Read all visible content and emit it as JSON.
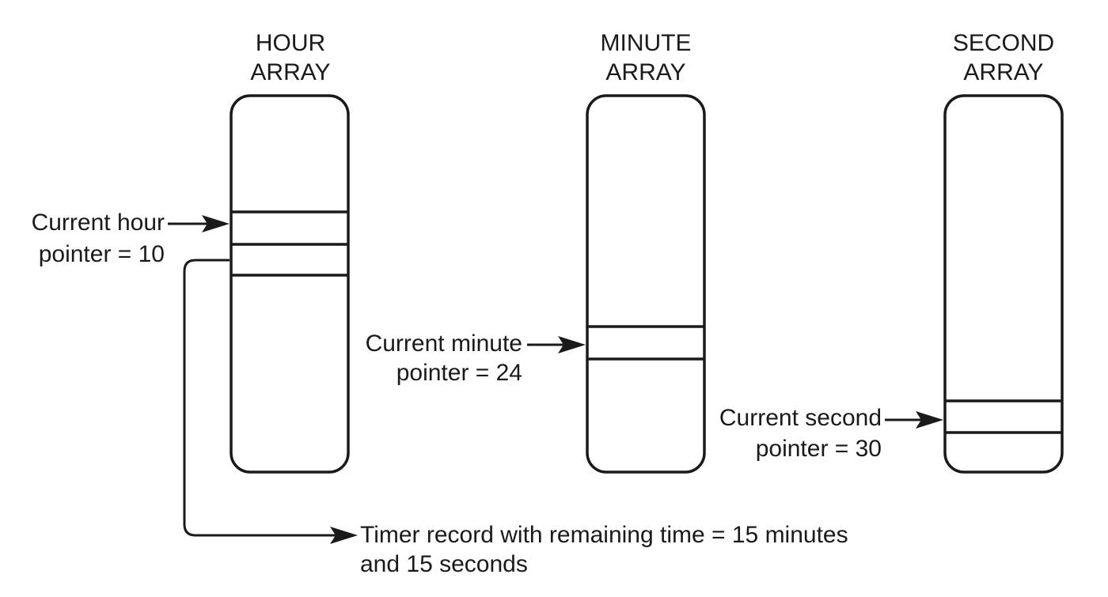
{
  "hour_array": {
    "title_line1": "HOUR",
    "title_line2": "ARRAY",
    "pointer_label_line1": "Current hour",
    "pointer_label_line2": "pointer = 10"
  },
  "minute_array": {
    "title_line1": "MINUTE",
    "title_line2": "ARRAY",
    "pointer_label_line1": "Current minute",
    "pointer_label_line2": "pointer = 24"
  },
  "second_array": {
    "title_line1": "SECOND",
    "title_line2": "ARRAY",
    "pointer_label_line1": "Current second",
    "pointer_label_line2": "pointer = 30"
  },
  "timer_record": {
    "label_line1": "Timer record with remaining time = 15 minutes",
    "label_line2": "and 15 seconds"
  }
}
